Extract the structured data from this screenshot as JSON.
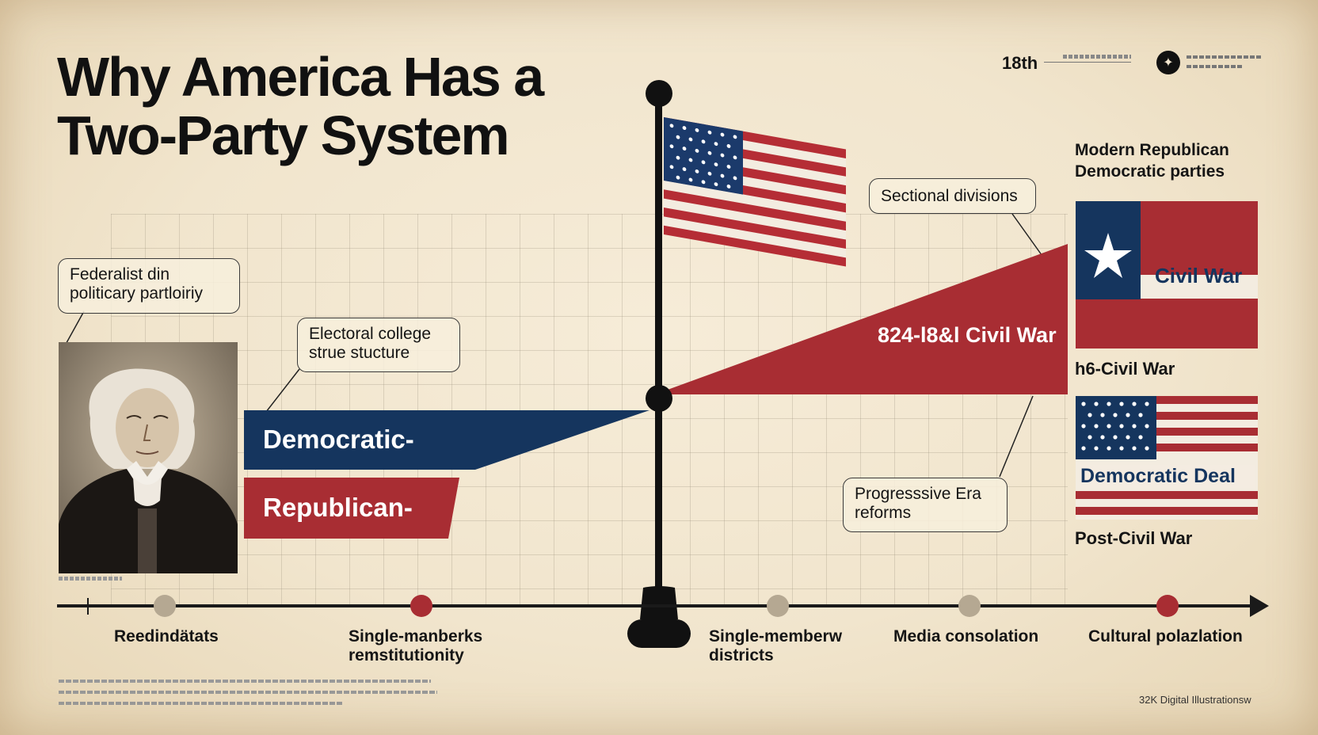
{
  "title": {
    "line1": "Why America Has a",
    "line2": "Two-Party System"
  },
  "header": {
    "year": "18th",
    "badge_icon": "compass-star-icon"
  },
  "callouts": {
    "federalist": [
      "Federalist din",
      "politicary partloiriy"
    ],
    "electoral": [
      "Electoral college",
      "strue  stucture"
    ],
    "sectional": "Sectional divisions",
    "progressive": [
      "Progresssive Era",
      "reforms"
    ]
  },
  "bars": {
    "democratic": "Democratic-",
    "republican": "Republican-",
    "civil_war": "824-l8&l Civil War"
  },
  "right_column": {
    "heading": [
      "Modern Republican",
      "Democratic parties"
    ],
    "flag1_text": "Civil War",
    "label1": "h6-Civil War",
    "flag2_text": "Democratic Deal",
    "label2": "Post-Civil War"
  },
  "timeline": [
    {
      "label": [
        "Reedindätats"
      ],
      "marker": "gray"
    },
    {
      "label": [
        "Single-manberks",
        "remstitutionity"
      ],
      "marker": "red"
    },
    {
      "label": [
        "Single-memberw",
        "districts"
      ],
      "marker": "gray"
    },
    {
      "label": [
        "Media consolation"
      ],
      "marker": "gray"
    },
    {
      "label": [
        "Cultural polazlation"
      ],
      "marker": "red"
    }
  ],
  "footer": {
    "credit": "32K Digital Illustrationsw"
  },
  "colors": {
    "navy": "#15355e",
    "red": "#a82d33",
    "paper": "#efe3cc",
    "ink": "#111111",
    "marker_gray": "#b5a892",
    "marker_red": "#a82d33"
  }
}
